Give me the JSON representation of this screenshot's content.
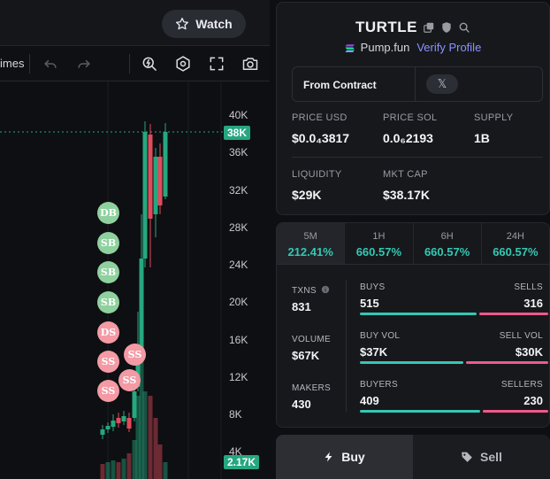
{
  "header": {
    "watch_label": "Watch"
  },
  "toolbar": {
    "indicator_text": "imes"
  },
  "chart": {
    "y_ticks": [
      "40K",
      "36K",
      "32K",
      "28K",
      "24K",
      "20K",
      "16K",
      "12K",
      "8K",
      "4K"
    ],
    "current_price_label": "38K",
    "volume_label": "2.17K",
    "markers": [
      "DB",
      "SB",
      "SB",
      "SB",
      "DS",
      "SS",
      "SS",
      "SS",
      "SS"
    ],
    "colors": {
      "up": "#26a77f",
      "down": "#e04b5b"
    }
  },
  "token": {
    "name": "TURTLE",
    "platform": "Pump.fun",
    "verify_label": "Verify Profile",
    "contract_label": "From Contract",
    "x_label": "𝕏"
  },
  "stats": {
    "price_usd": {
      "label": "PRICE USD",
      "value": "$0.0₄3817"
    },
    "price_sol": {
      "label": "PRICE SOL",
      "value": "0.0₆2193"
    },
    "supply": {
      "label": "SUPPLY",
      "value": "1B"
    },
    "liquidity": {
      "label": "LIQUIDITY",
      "value": "$29K"
    },
    "mkt_cap": {
      "label": "MKT CAP",
      "value": "$38.17K"
    }
  },
  "timeframes": [
    {
      "label": "5M",
      "value": "212.41%"
    },
    {
      "label": "1H",
      "value": "660.57%"
    },
    {
      "label": "6H",
      "value": "660.57%"
    },
    {
      "label": "24H",
      "value": "660.57%"
    }
  ],
  "metrics": {
    "txns": {
      "label": "TXNS",
      "value": "831"
    },
    "volume": {
      "label": "VOLUME",
      "value": "$67K"
    },
    "makers": {
      "label": "MAKERS",
      "value": "430"
    },
    "buys": {
      "label": "BUYS",
      "value": "515"
    },
    "sells": {
      "label": "SELLS",
      "value": "316"
    },
    "buy_vol": {
      "label": "BUY VOL",
      "value": "$37K"
    },
    "sell_vol": {
      "label": "SELL VOL",
      "value": "$30K"
    },
    "buyers": {
      "label": "BUYERS",
      "value": "409"
    },
    "sellers": {
      "label": "SELLERS",
      "value": "230"
    }
  },
  "ratios": {
    "buys": 0.62,
    "buy_vol": 0.55,
    "buyers": 0.64
  },
  "trade": {
    "buy_label": "Buy",
    "sell_label": "Sell"
  }
}
